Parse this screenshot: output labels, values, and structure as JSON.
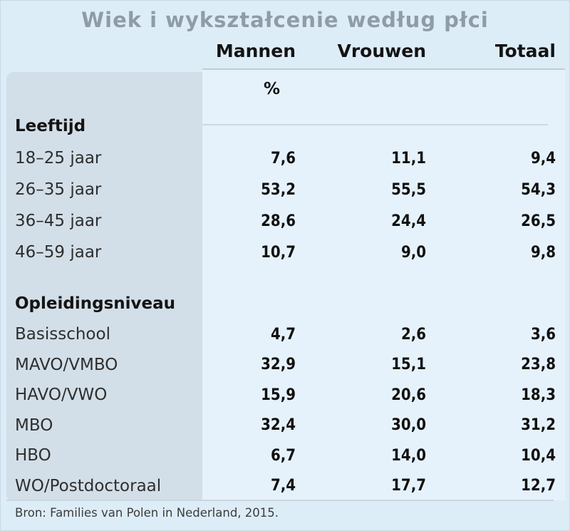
{
  "title": "Wiek i wykształcenie według płci",
  "header": {
    "col1": "Mannen",
    "col2": "Vrouwen",
    "col3": "Totaal"
  },
  "unit_label": "%",
  "table": {
    "sections": [
      {
        "header": "Leeftijd",
        "rows": [
          {
            "label": "18–25 jaar",
            "values": [
              "7,6",
              "11,1",
              "9,4"
            ]
          },
          {
            "label": "26–35 jaar",
            "values": [
              "53,2",
              "55,5",
              "54,3"
            ]
          },
          {
            "label": "36–45 jaar",
            "values": [
              "28,6",
              "24,4",
              "26,5"
            ]
          },
          {
            "label": "46–59 jaar",
            "values": [
              "10,7",
              "9,0",
              "9,8"
            ]
          }
        ]
      },
      {
        "header": "Opleidingsniveau",
        "rows": [
          {
            "label": "Basisschool",
            "values": [
              "4,7",
              "2,6",
              "3,6"
            ]
          },
          {
            "label": "MAVO/VMBO",
            "values": [
              "32,9",
              "15,1",
              "23,8"
            ]
          },
          {
            "label": "HAVO/VWO",
            "values": [
              "15,9",
              "20,6",
              "18,3"
            ]
          },
          {
            "label": "MBO",
            "values": [
              "32,4",
              "30,0",
              "31,2"
            ]
          },
          {
            "label": "HBO",
            "values": [
              "6,7",
              "14,0",
              "10,4"
            ]
          },
          {
            "label": "WO/Postdoctoraal",
            "values": [
              "7,4",
              "17,7",
              "12,7"
            ]
          }
        ]
      }
    ]
  },
  "footer": "Bron: Families van Polen in Nederland, 2015.",
  "chart_data": {
    "type": "table",
    "title": "Wiek i wykształcenie według płci",
    "columns": [
      "Mannen",
      "Vrouwen",
      "Totaal"
    ],
    "unit": "%",
    "sections": [
      {
        "header": "Leeftijd",
        "rows": [
          {
            "label": "18–25 jaar",
            "values": [
              7.6,
              11.1,
              9.4
            ]
          },
          {
            "label": "26–35 jaar",
            "values": [
              53.2,
              55.5,
              54.3
            ]
          },
          {
            "label": "36–45 jaar",
            "values": [
              28.6,
              24.4,
              26.5
            ]
          },
          {
            "label": "46–59 jaar",
            "values": [
              10.7,
              9.0,
              9.8
            ]
          }
        ]
      },
      {
        "header": "Opleidingsniveau",
        "rows": [
          {
            "label": "Basisschool",
            "values": [
              4.7,
              2.6,
              3.6
            ]
          },
          {
            "label": "MAVO/VMBO",
            "values": [
              32.9,
              15.1,
              23.8
            ]
          },
          {
            "label": "HAVO/VWO",
            "values": [
              15.9,
              20.6,
              18.3
            ]
          },
          {
            "label": "MBO",
            "values": [
              32.4,
              30.0,
              31.2
            ]
          },
          {
            "label": "HBO",
            "values": [
              6.7,
              14.0,
              10.4
            ]
          },
          {
            "label": "WO/Postdoctoraal",
            "values": [
              7.4,
              17.7,
              12.7
            ]
          }
        ]
      }
    ],
    "source": "Bron: Families van Polen in Nederland, 2015."
  },
  "colors": {
    "page_background": "#ddedf8",
    "label_column_background": "#d3dfe8",
    "data_panel_background": "#e6f2fb",
    "title_text": "#8f9ca6",
    "body_text": "#141414",
    "separator_line": "#cdd7e0"
  }
}
